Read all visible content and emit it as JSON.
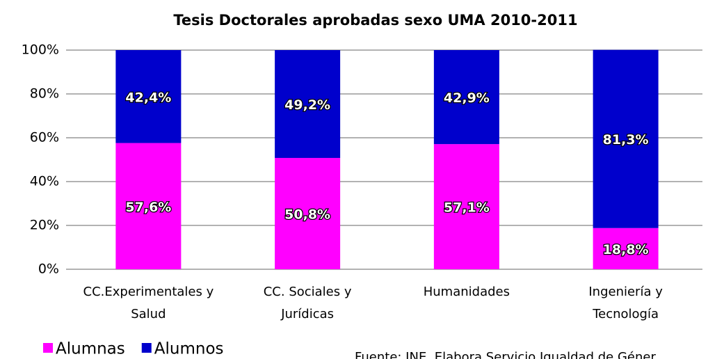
{
  "chart_data": {
    "type": "stacked_bar",
    "title": "Tesis Doctorales aprobadas sexo UMA 2010-2011",
    "categories": [
      "CC.Experimentales y Salud",
      "CC. Sociales y Jurídicas",
      "Humanidades",
      "Ingeniería y Tecnología"
    ],
    "series": [
      {
        "name": "Alumnas",
        "color": "#ff00ff",
        "values": [
          57.6,
          50.8,
          57.1,
          18.8
        ],
        "value_labels": [
          "57,6%",
          "50,8%",
          "57,1%",
          "18,8%"
        ]
      },
      {
        "name": "Alumnos",
        "color": "#0000cc",
        "values": [
          42.4,
          49.2,
          42.9,
          81.3
        ],
        "value_labels": [
          "42,4%",
          "49,2%",
          "42,9%",
          "81,3%"
        ]
      }
    ],
    "ylim": [
      0,
      100
    ],
    "yticks": [
      {
        "value": 0,
        "label": "0%"
      },
      {
        "value": 20,
        "label": "20%"
      },
      {
        "value": 40,
        "label": "40%"
      },
      {
        "value": 60,
        "label": "60%"
      },
      {
        "value": 80,
        "label": "80%"
      },
      {
        "value": 100,
        "label": "100%"
      }
    ],
    "grid": true,
    "legend": "bottom-left",
    "source": "Fuente: INE. Elabora Servicio Igualdad de Géner"
  }
}
